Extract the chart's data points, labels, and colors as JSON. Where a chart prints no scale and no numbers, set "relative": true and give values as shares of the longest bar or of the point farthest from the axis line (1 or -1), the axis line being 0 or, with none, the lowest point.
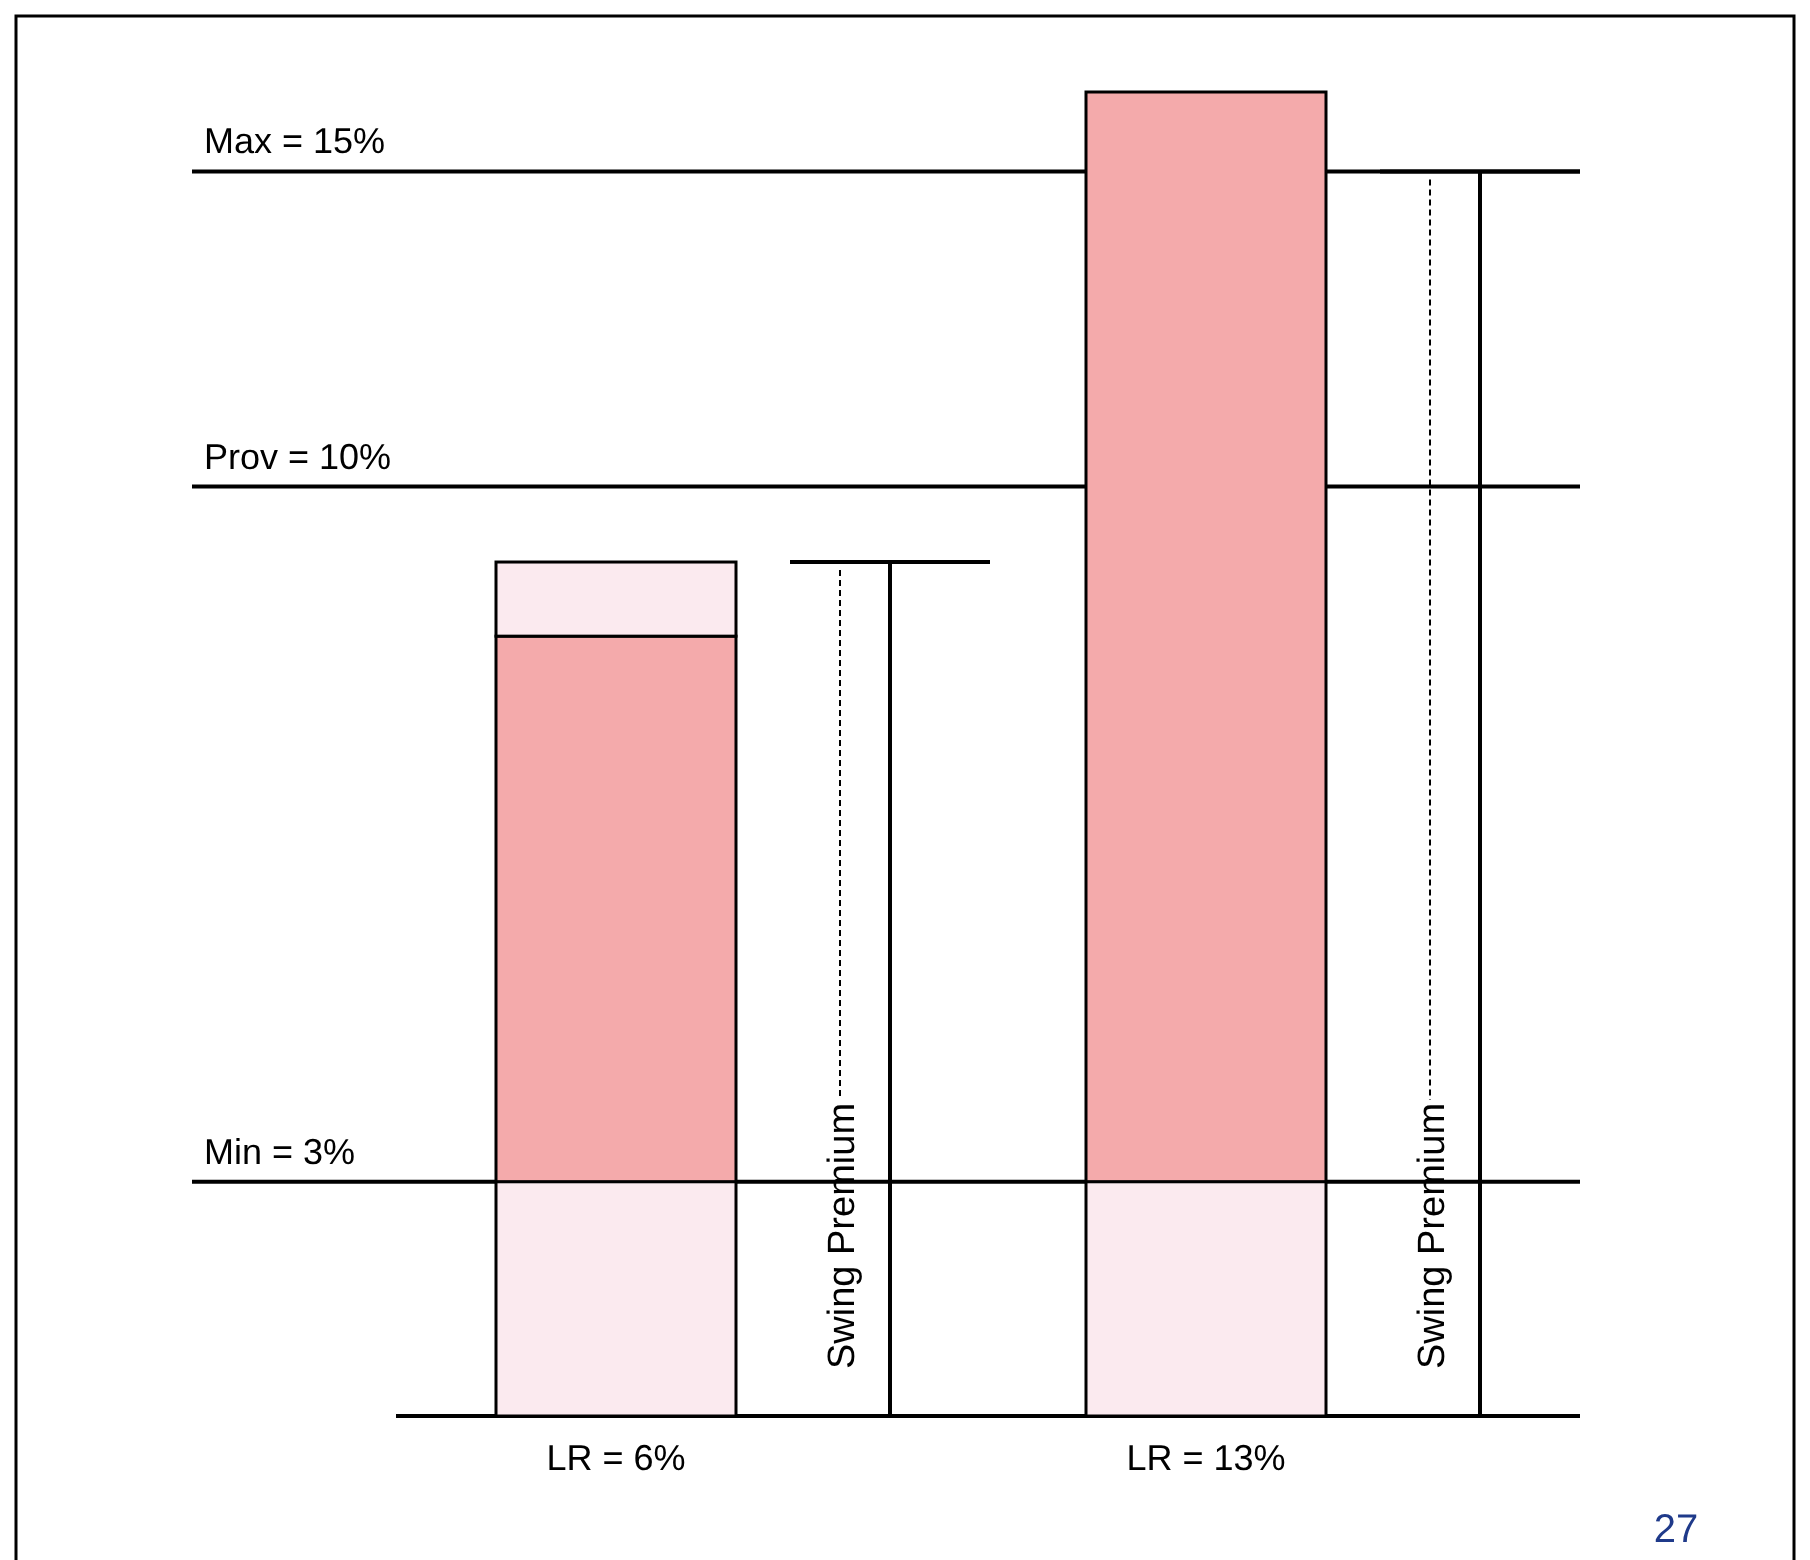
{
  "chart_data": {
    "type": "bar",
    "stacked": true,
    "relative": true,
    "categories": [
      "LR = 6%",
      "LR = 13%"
    ],
    "series": [
      {
        "color": "#fbeaef",
        "values": [
          0.177,
          0.177
        ]
      },
      {
        "color": "#f4aaab",
        "values": [
          0.412,
          0.823
        ]
      },
      {
        "color": "#fbeaef",
        "values": [
          0.056,
          0
        ]
      }
    ],
    "ref_lines": [
      {
        "axis": "y",
        "value": 0.94,
        "color": "#000000"
      },
      {
        "axis": "y",
        "value": 0.702,
        "color": "#000000"
      },
      {
        "axis": "y",
        "value": 0.177,
        "color": "#000000"
      }
    ],
    "annotations": [
      {
        "text": "Max = 15%",
        "y": 0.94
      },
      {
        "text": "Prov = 10%",
        "y": 0.702
      },
      {
        "text": "Min = 3%",
        "y": 0.177
      },
      "Swing Premium",
      "Swing Premium",
      "27"
    ]
  }
}
